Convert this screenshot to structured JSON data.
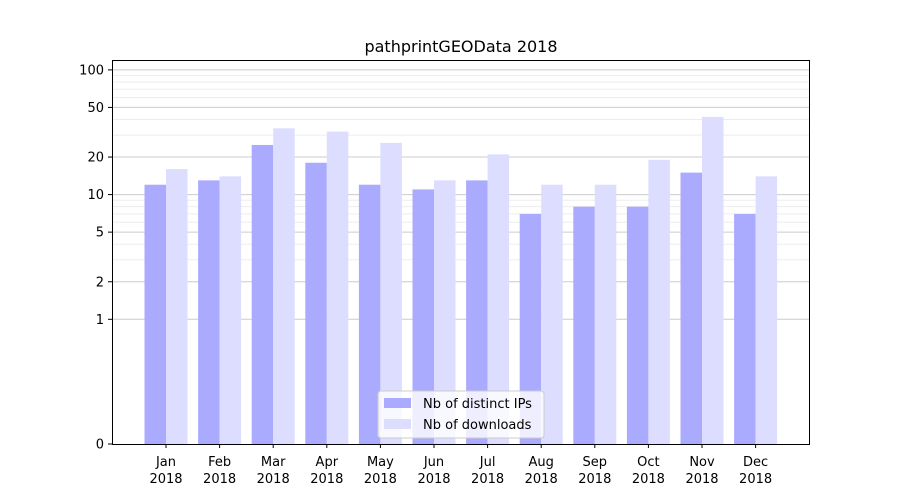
{
  "chart_data": {
    "type": "bar",
    "title": "pathprintGEOData 2018",
    "xlabel": "",
    "ylabel": "",
    "yscale": "symlog",
    "ylim": [
      0,
      120
    ],
    "yticks": [
      0,
      1,
      2,
      5,
      10,
      20,
      50,
      100
    ],
    "ytick_labels": [
      "0",
      "1",
      "2",
      "5",
      "10",
      "20",
      "50",
      "100"
    ],
    "grid": "horizontal",
    "legend_position": "bottom-center",
    "categories": [
      [
        "Jan",
        "2018"
      ],
      [
        "Feb",
        "2018"
      ],
      [
        "Mar",
        "2018"
      ],
      [
        "Apr",
        "2018"
      ],
      [
        "May",
        "2018"
      ],
      [
        "Jun",
        "2018"
      ],
      [
        "Jul",
        "2018"
      ],
      [
        "Aug",
        "2018"
      ],
      [
        "Sep",
        "2018"
      ],
      [
        "Oct",
        "2018"
      ],
      [
        "Nov",
        "2018"
      ],
      [
        "Dec",
        "2018"
      ]
    ],
    "series": [
      {
        "name": "Nb of distinct IPs",
        "color": "#aaaaff",
        "values": [
          12,
          13,
          25,
          18,
          12,
          11,
          13,
          7,
          8,
          8,
          15,
          7
        ]
      },
      {
        "name": "Nb of downloads",
        "color": "#ddddff",
        "values": [
          16,
          14,
          34,
          32,
          26,
          13,
          21,
          12,
          12,
          19,
          42,
          14
        ]
      }
    ]
  }
}
